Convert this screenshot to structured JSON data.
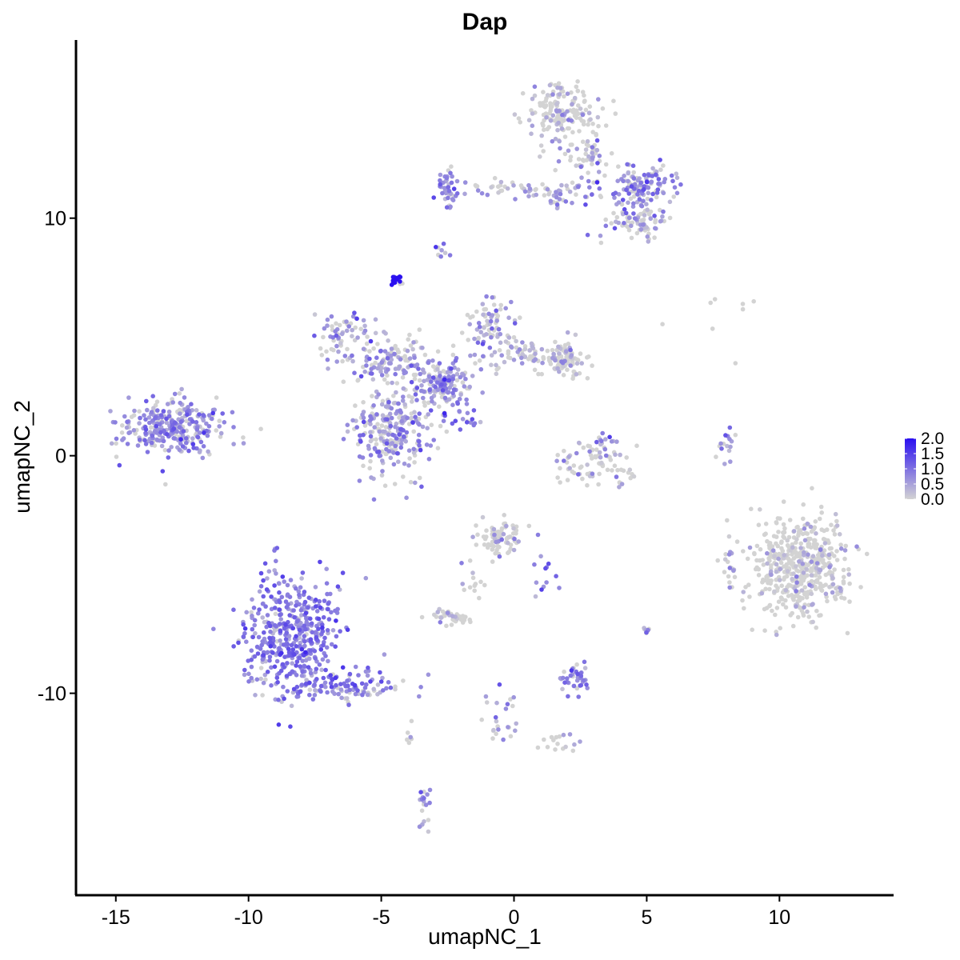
{
  "chart_data": {
    "type": "scatter",
    "title": "Dap",
    "xlabel": "umapNC_1",
    "ylabel": "umapNC_2",
    "xlim": [
      -16.5,
      14.3
    ],
    "ylim": [
      -18.5,
      17.5
    ],
    "x_ticks": [
      -15,
      -10,
      -5,
      0,
      5,
      10
    ],
    "x_tick_labels": [
      "-15",
      "-10",
      "-5",
      "0",
      "5",
      "10"
    ],
    "y_ticks": [
      -10,
      0,
      10
    ],
    "y_tick_labels": [
      "-10",
      "0",
      "10"
    ],
    "grid": false,
    "legend": {
      "placement": "right",
      "type": "colorbar",
      "ticks": [
        0.0,
        0.5,
        1.0,
        1.5,
        2.0
      ],
      "tick_labels": [
        "0.0",
        "0.5",
        "1.0",
        "1.5",
        "2.0"
      ],
      "color_low": "#d3d3d3",
      "color_high": "#2a0ff0"
    },
    "color_range": [
      0,
      2.0
    ],
    "clusters": [
      {
        "cx": -12.8,
        "cy": 1.2,
        "sx": 1.1,
        "sy": 0.7,
        "n": 300,
        "expr": 0.65
      },
      {
        "cx": -8.4,
        "cy": -7.6,
        "sx": 1.1,
        "sy": 1.5,
        "n": 450,
        "expr": 0.8
      },
      {
        "cx": -6.3,
        "cy": -9.7,
        "sx": 1.4,
        "sy": 0.4,
        "n": 110,
        "expr": 0.7
      },
      {
        "cx": -4.6,
        "cy": 1.0,
        "sx": 0.9,
        "sy": 1.1,
        "n": 260,
        "expr": 0.55
      },
      {
        "cx": -6.3,
        "cy": 5.0,
        "sx": 0.7,
        "sy": 0.6,
        "n": 70,
        "expr": 0.55
      },
      {
        "cx": -4.6,
        "cy": 4.0,
        "sx": 0.8,
        "sy": 0.6,
        "n": 110,
        "expr": 0.5
      },
      {
        "cx": -2.6,
        "cy": 3.1,
        "sx": 0.8,
        "sy": 0.7,
        "n": 150,
        "expr": 0.55
      },
      {
        "cx": -1.0,
        "cy": 5.5,
        "sx": 0.5,
        "sy": 0.6,
        "n": 70,
        "expr": 0.5
      },
      {
        "cx": 0.4,
        "cy": 4.3,
        "sx": 0.9,
        "sy": 0.4,
        "n": 70,
        "expr": 0.4
      },
      {
        "cx": 1.9,
        "cy": 4.1,
        "sx": 0.5,
        "sy": 0.5,
        "n": 90,
        "expr": 0.25
      },
      {
        "cx": -4.45,
        "cy": 7.4,
        "sx": 0.15,
        "sy": 0.15,
        "n": 18,
        "expr": 1.8
      },
      {
        "cx": -2.0,
        "cy": 1.5,
        "sx": 0.5,
        "sy": 0.4,
        "n": 18,
        "expr": 1.0
      },
      {
        "cx": 1.8,
        "cy": 14.4,
        "sx": 0.8,
        "sy": 0.7,
        "n": 170,
        "expr": 0.25
      },
      {
        "cx": 2.7,
        "cy": 12.6,
        "sx": 0.5,
        "sy": 0.6,
        "n": 50,
        "expr": 0.35
      },
      {
        "cx": 4.7,
        "cy": 11.4,
        "sx": 0.8,
        "sy": 0.5,
        "n": 130,
        "expr": 0.6
      },
      {
        "cx": 4.7,
        "cy": 9.8,
        "sx": 0.7,
        "sy": 0.4,
        "n": 80,
        "expr": 0.45
      },
      {
        "cx": -2.5,
        "cy": 11.4,
        "sx": 0.3,
        "sy": 0.5,
        "n": 40,
        "expr": 0.7
      },
      {
        "cx": -0.3,
        "cy": 11.2,
        "sx": 1.4,
        "sy": 0.25,
        "n": 40,
        "expr": 0.4
      },
      {
        "cx": 1.8,
        "cy": 11.0,
        "sx": 0.8,
        "sy": 0.3,
        "n": 40,
        "expr": 0.5
      },
      {
        "cx": -2.7,
        "cy": 8.6,
        "sx": 0.15,
        "sy": 0.2,
        "n": 8,
        "expr": 0.6
      },
      {
        "cx": 3.2,
        "cy": -0.4,
        "sx": 0.9,
        "sy": 0.6,
        "n": 80,
        "expr": 0.2
      },
      {
        "cx": 3.3,
        "cy": 0.6,
        "sx": 0.2,
        "sy": 0.4,
        "n": 14,
        "expr": 0.6
      },
      {
        "cx": 8.0,
        "cy": 0.3,
        "sx": 0.2,
        "sy": 0.5,
        "n": 16,
        "expr": 0.6
      },
      {
        "cx": 10.7,
        "cy": -4.7,
        "sx": 1.1,
        "sy": 1.2,
        "n": 500,
        "expr": 0.18
      },
      {
        "cx": 8.2,
        "cy": -4.4,
        "sx": 0.2,
        "sy": 0.5,
        "n": 15,
        "expr": 0.3
      },
      {
        "cx": -0.5,
        "cy": -3.4,
        "sx": 0.5,
        "sy": 0.5,
        "n": 80,
        "expr": 0.2
      },
      {
        "cx": 1.0,
        "cy": -5.0,
        "sx": 0.3,
        "sy": 0.5,
        "n": 12,
        "expr": 0.8
      },
      {
        "cx": -1.6,
        "cy": -5.5,
        "sx": 0.3,
        "sy": 0.6,
        "n": 14,
        "expr": 0.3
      },
      {
        "cx": -2.4,
        "cy": -6.8,
        "sx": 0.4,
        "sy": 0.2,
        "n": 40,
        "expr": 0.15
      },
      {
        "cx": 2.3,
        "cy": -9.3,
        "sx": 0.4,
        "sy": 0.4,
        "n": 40,
        "expr": 0.7
      },
      {
        "cx": 5.0,
        "cy": -7.3,
        "sx": 0.1,
        "sy": 0.2,
        "n": 10,
        "expr": 0.6
      },
      {
        "cx": -0.4,
        "cy": -11.3,
        "sx": 0.3,
        "sy": 0.7,
        "n": 25,
        "expr": 0.5
      },
      {
        "cx": 1.5,
        "cy": -12.1,
        "sx": 0.7,
        "sy": 0.3,
        "n": 16,
        "expr": 0.4
      },
      {
        "cx": -3.4,
        "cy": -14.8,
        "sx": 0.2,
        "sy": 0.6,
        "n": 20,
        "expr": 0.6
      },
      {
        "cx": -3.9,
        "cy": -11.8,
        "sx": 0.1,
        "sy": 0.5,
        "n": 6,
        "expr": 0.4
      },
      {
        "cx": 7.8,
        "cy": 6.1,
        "sx": 1.2,
        "sy": 1.1,
        "n": 8,
        "expr": 0.0
      }
    ]
  }
}
